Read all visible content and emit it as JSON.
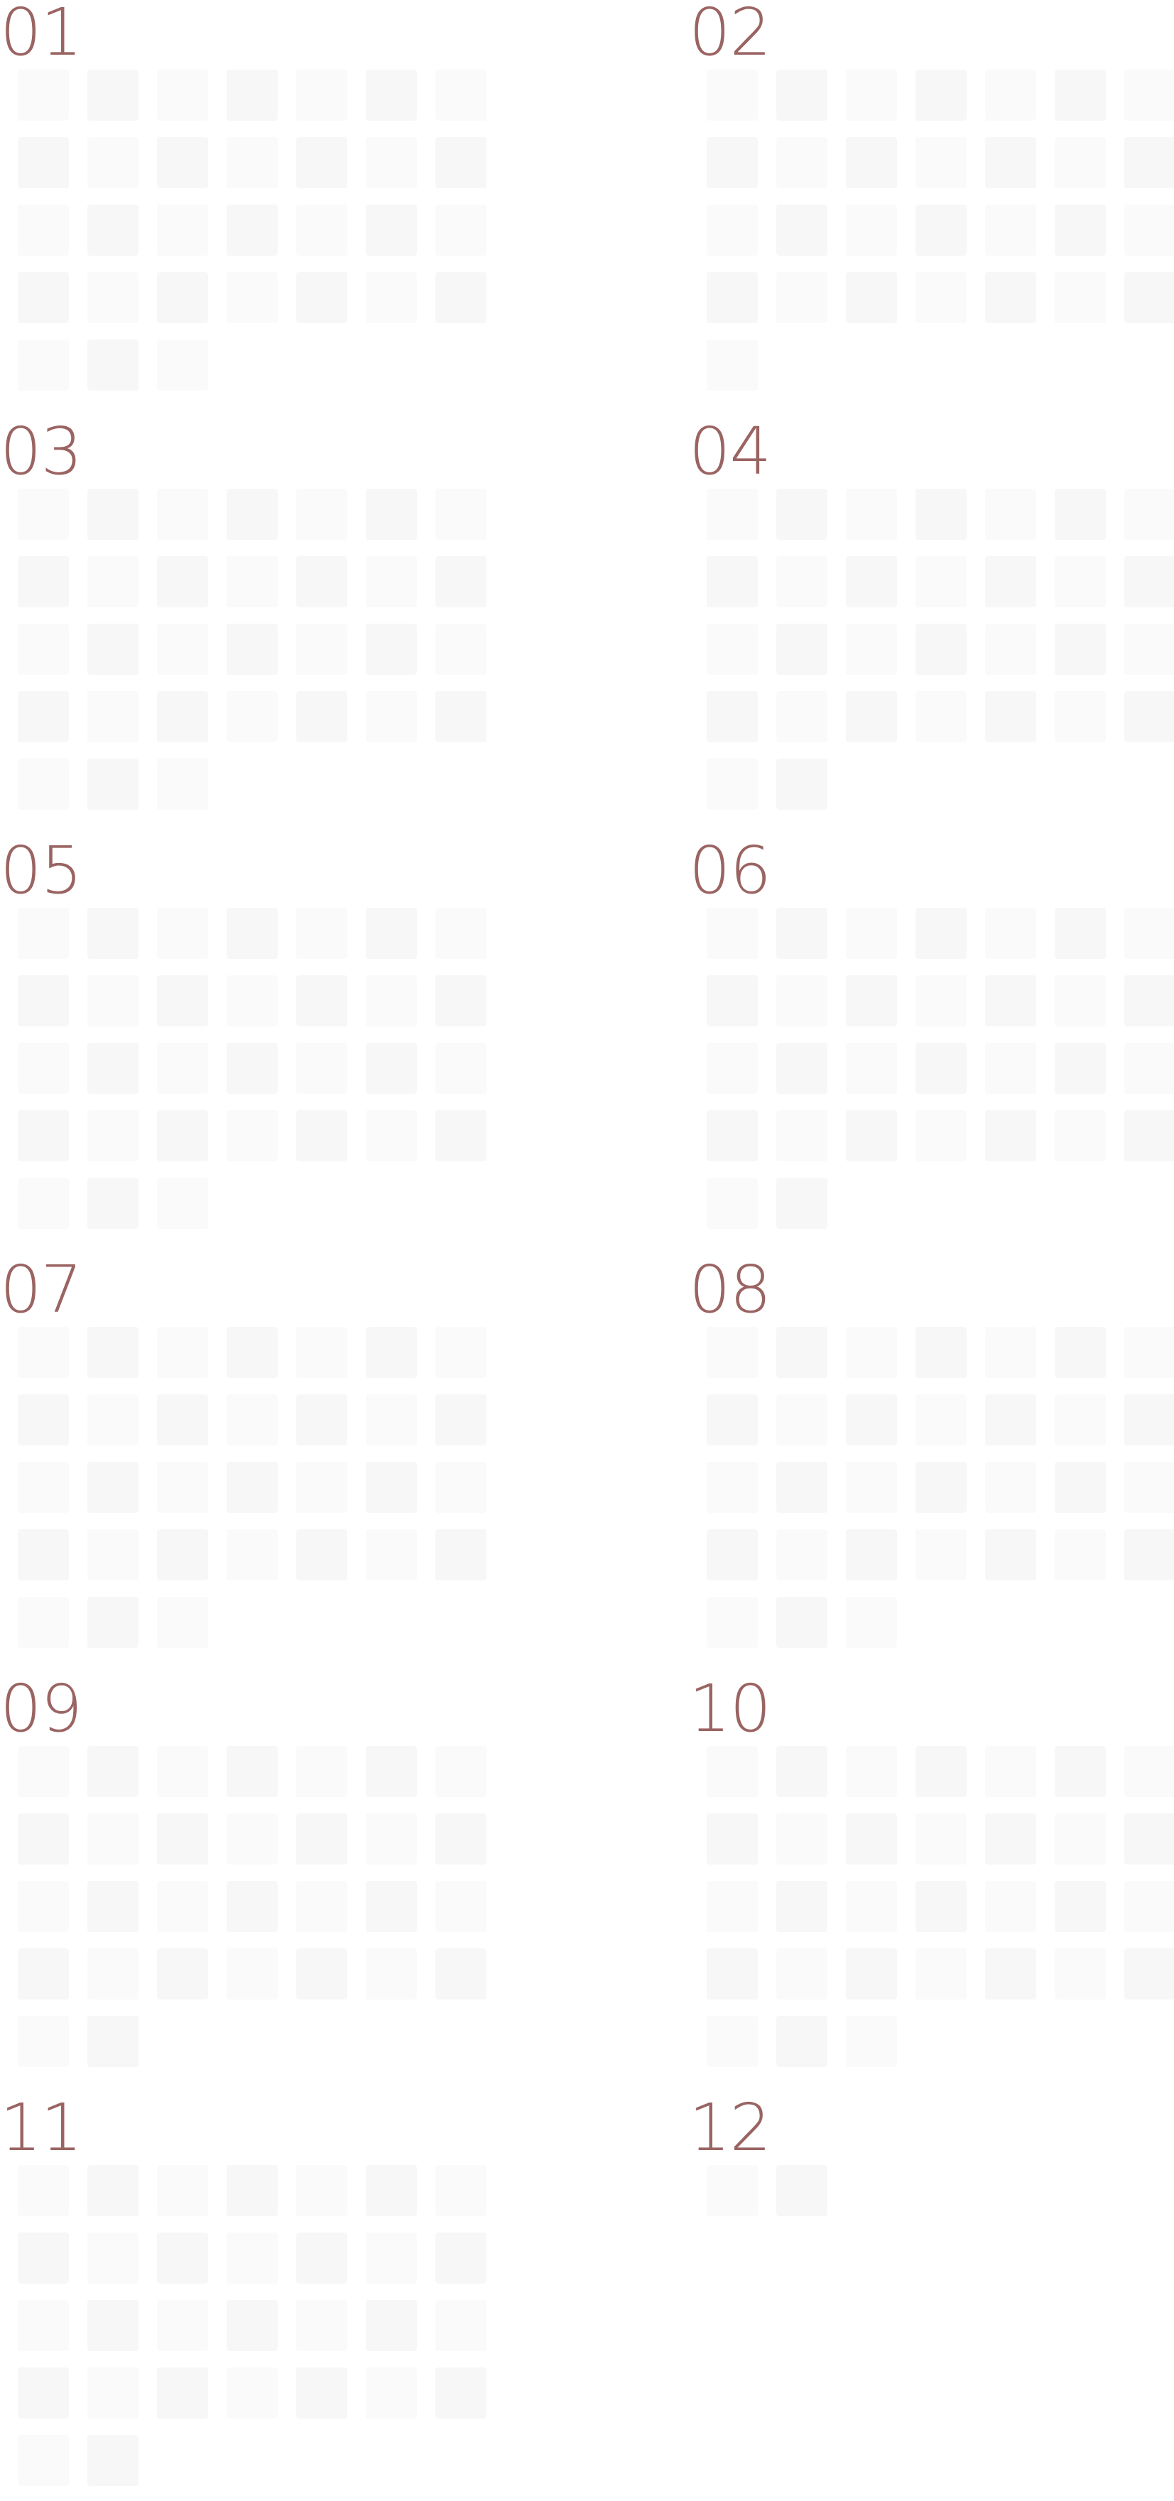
{
  "calendar": {
    "colors": {
      "label": "#9a6462",
      "cell": "#fafafa",
      "cell_alt": "#f7f7f7"
    },
    "months": [
      {
        "label": "01",
        "days": 31,
        "start_weekday": 0
      },
      {
        "label": "02",
        "days": 29,
        "start_weekday": 0
      },
      {
        "label": "03",
        "days": 31,
        "start_weekday": 0
      },
      {
        "label": "04",
        "days": 30,
        "start_weekday": 0
      },
      {
        "label": "05",
        "days": 31,
        "start_weekday": 0
      },
      {
        "label": "06",
        "days": 30,
        "start_weekday": 0
      },
      {
        "label": "07",
        "days": 31,
        "start_weekday": 0
      },
      {
        "label": "08",
        "days": 31,
        "start_weekday": 0
      },
      {
        "label": "09",
        "days": 30,
        "start_weekday": 0
      },
      {
        "label": "10",
        "days": 31,
        "start_weekday": 0
      },
      {
        "label": "11",
        "days": 30,
        "start_weekday": 0
      },
      {
        "label": "12",
        "days": 2,
        "start_weekday": 0
      }
    ]
  }
}
